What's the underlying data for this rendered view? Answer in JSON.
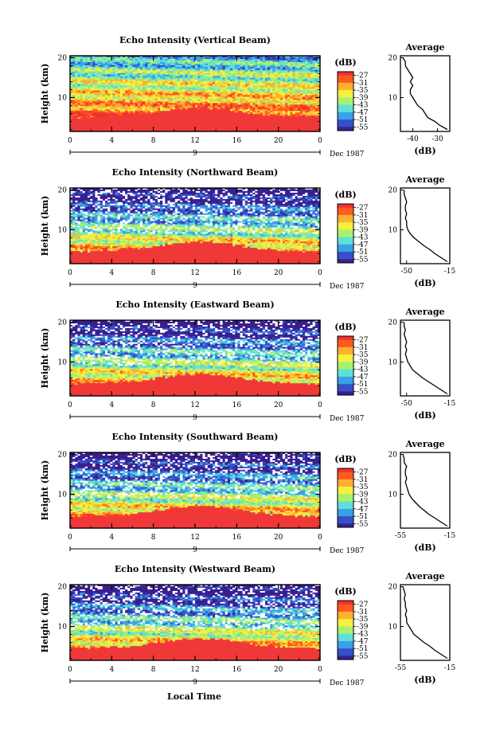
{
  "figure": {
    "xaxis_label": "Local Time",
    "date_label": "Dec 1987",
    "day_marker": "9",
    "colorbar_label": "(dB)",
    "avg_title": "Average",
    "avg_xlabel": "(dB)"
  },
  "chart_data": [
    {
      "type": "heatmap",
      "title": "Echo Intensity (Vertical Beam)",
      "xlabel": "Local Time",
      "ylabel": "Height (km)",
      "x_ticks": [
        "0",
        "4",
        "8",
        "12",
        "16",
        "20",
        "0"
      ],
      "y_ticks": [
        "10",
        "20"
      ],
      "xlim": [
        0,
        24
      ],
      "ylim": [
        1.5,
        20.5
      ],
      "colorbar": {
        "label": "(dB)",
        "ticks": [
          "-27",
          "-31",
          "-35",
          "-39",
          "-43",
          "-47",
          "-51",
          "-55"
        ],
        "range": [
          -57,
          -25
        ]
      },
      "surface_layer_top_km": 5.0,
      "average_profile": {
        "title": "Average",
        "xlabel": "(dB)",
        "xlim": [
          -45,
          -25
        ],
        "x_ticks": [
          "-40",
          "-30"
        ],
        "y_ticks": [
          "10",
          "20"
        ],
        "height_km": [
          2,
          3,
          4,
          5,
          6,
          7,
          8,
          9,
          10,
          11,
          12,
          13,
          14,
          15,
          16,
          17,
          18,
          19,
          20
        ],
        "db": [
          -26,
          -29,
          -31,
          -34,
          -35,
          -36,
          -38,
          -39,
          -40,
          -41,
          -41,
          -40,
          -41,
          -40,
          -41,
          -42,
          -43,
          -43,
          -44
        ]
      }
    },
    {
      "type": "heatmap",
      "title": "Echo Intensity (Northward Beam)",
      "xlabel": "Local Time",
      "ylabel": "Height (km)",
      "x_ticks": [
        "0",
        "4",
        "8",
        "12",
        "16",
        "20",
        "0"
      ],
      "y_ticks": [
        "10",
        "20"
      ],
      "xlim": [
        0,
        24
      ],
      "ylim": [
        1.5,
        20.5
      ],
      "colorbar": {
        "label": "(dB)",
        "ticks": [
          "-27",
          "-31",
          "-35",
          "-39",
          "-43",
          "-47",
          "-51",
          "-55"
        ],
        "range": [
          -57,
          -25
        ]
      },
      "surface_layer_top_km": 4.5,
      "average_profile": {
        "title": "Average",
        "xlabel": "(dB)",
        "xlim": [
          -55,
          -15
        ],
        "x_ticks": [
          "-50",
          "-15"
        ],
        "y_ticks": [
          "10",
          "20"
        ],
        "height_km": [
          2,
          3,
          4,
          5,
          6,
          7,
          8,
          9,
          10,
          11,
          12,
          13,
          14,
          15,
          16,
          17,
          18,
          19,
          20
        ],
        "db": [
          -17,
          -22,
          -27,
          -31,
          -36,
          -40,
          -44,
          -47,
          -49,
          -50,
          -50,
          -51,
          -50,
          -51,
          -51,
          -50,
          -51,
          -52,
          -52
        ]
      }
    },
    {
      "type": "heatmap",
      "title": "Echo Intensity (Eastward Beam)",
      "xlabel": "Local Time",
      "ylabel": "Height (km)",
      "x_ticks": [
        "0",
        "4",
        "8",
        "12",
        "16",
        "20",
        "0"
      ],
      "y_ticks": [
        "10",
        "20"
      ],
      "xlim": [
        0,
        24
      ],
      "ylim": [
        1.5,
        20.5
      ],
      "colorbar": {
        "label": "(dB)",
        "ticks": [
          "-27",
          "-31",
          "-35",
          "-39",
          "-43",
          "-47",
          "-51",
          "-55"
        ],
        "range": [
          -57,
          -25
        ]
      },
      "surface_layer_top_km": 4.5,
      "average_profile": {
        "title": "Average",
        "xlabel": "(dB)",
        "xlim": [
          -55,
          -15
        ],
        "x_ticks": [
          "-50",
          "-15"
        ],
        "y_ticks": [
          "10",
          "20"
        ],
        "height_km": [
          2,
          3,
          4,
          5,
          6,
          7,
          8,
          9,
          10,
          11,
          12,
          13,
          14,
          15,
          16,
          17,
          18,
          19,
          20
        ],
        "db": [
          -17,
          -22,
          -27,
          -32,
          -37,
          -41,
          -45,
          -47,
          -49,
          -50,
          -51,
          -50,
          -51,
          -50,
          -51,
          -52,
          -51,
          -52,
          -52
        ]
      }
    },
    {
      "type": "heatmap",
      "title": "Echo Intensity (Southward Beam)",
      "xlabel": "Local Time",
      "ylabel": "Height (km)",
      "x_ticks": [
        "0",
        "4",
        "8",
        "12",
        "16",
        "20",
        "0"
      ],
      "y_ticks": [
        "10",
        "20"
      ],
      "xlim": [
        0,
        24
      ],
      "ylim": [
        1.5,
        20.5
      ],
      "colorbar": {
        "label": "(dB)",
        "ticks": [
          "-27",
          "-31",
          "-35",
          "-39",
          "-43",
          "-47",
          "-51",
          "-55"
        ],
        "range": [
          -57,
          -25
        ]
      },
      "surface_layer_top_km": 4.5,
      "average_profile": {
        "title": "Average",
        "xlabel": "(dB)",
        "xlim": [
          -55,
          -15
        ],
        "x_ticks": [
          "-55",
          "-15"
        ],
        "y_ticks": [
          "10",
          "20"
        ],
        "height_km": [
          2,
          3,
          4,
          5,
          6,
          7,
          8,
          9,
          10,
          11,
          12,
          13,
          14,
          15,
          16,
          17,
          18,
          19,
          20
        ],
        "db": [
          -17,
          -22,
          -27,
          -32,
          -36,
          -40,
          -43,
          -46,
          -48,
          -49,
          -50,
          -51,
          -50,
          -51,
          -51,
          -50,
          -52,
          -52,
          -53
        ]
      }
    },
    {
      "type": "heatmap",
      "title": "Echo Intensity (Westward Beam)",
      "xlabel": "Local Time",
      "ylabel": "Height (km)",
      "x_ticks": [
        "0",
        "4",
        "8",
        "12",
        "16",
        "20",
        "0"
      ],
      "y_ticks": [
        "10",
        "20"
      ],
      "xlim": [
        0,
        24
      ],
      "ylim": [
        1.5,
        20.5
      ],
      "colorbar": {
        "label": "(dB)",
        "ticks": [
          "-27",
          "-31",
          "-35",
          "-39",
          "-43",
          "-47",
          "-51",
          "-55"
        ],
        "range": [
          -57,
          -25
        ]
      },
      "surface_layer_top_km": 4.5,
      "average_profile": {
        "title": "Average",
        "xlabel": "(dB)",
        "xlim": [
          -55,
          -15
        ],
        "x_ticks": [
          "-55",
          "-15"
        ],
        "y_ticks": [
          "10",
          "20"
        ],
        "height_km": [
          2,
          3,
          4,
          5,
          6,
          7,
          8,
          9,
          10,
          11,
          12,
          13,
          14,
          15,
          16,
          17,
          18,
          19,
          20
        ],
        "db": [
          -17,
          -22,
          -27,
          -31,
          -36,
          -40,
          -44,
          -46,
          -48,
          -50,
          -50,
          -51,
          -50,
          -51,
          -51,
          -52,
          -51,
          -52,
          -53
        ]
      }
    }
  ],
  "colors": {
    "scale": [
      "#3a1f8f",
      "#3650c8",
      "#3aa0e8",
      "#5fe0d8",
      "#a8f070",
      "#f6f040",
      "#ffb030",
      "#ff5a20",
      "#f03030"
    ],
    "surface": "#f03838",
    "axis": "#000000",
    "data_gap": "#ffffff"
  }
}
